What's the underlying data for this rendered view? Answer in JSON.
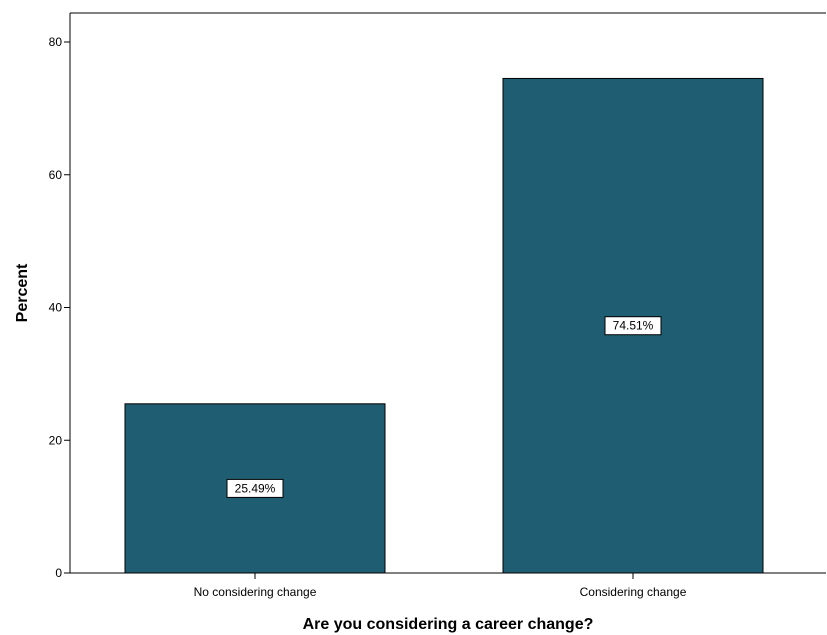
{
  "chart_data": {
    "type": "bar",
    "title": "",
    "xlabel": "Are you considering a career change?",
    "ylabel": "Percent",
    "categories": [
      "No considering change",
      "Considering change"
    ],
    "values": [
      25.49,
      74.51
    ],
    "data_labels": [
      "25.49%",
      "74.51%"
    ],
    "ylim": [
      0,
      80
    ],
    "yticks": [
      0,
      20,
      40,
      60,
      80
    ],
    "ytick_labels": [
      "0",
      "20",
      "40",
      "60",
      "80"
    ],
    "grid": false,
    "legend": "none",
    "colors": {
      "bar_fill": "#1f5e72",
      "bar_stroke": "#000000",
      "axis": "#000000",
      "background": "#ffffff"
    }
  }
}
